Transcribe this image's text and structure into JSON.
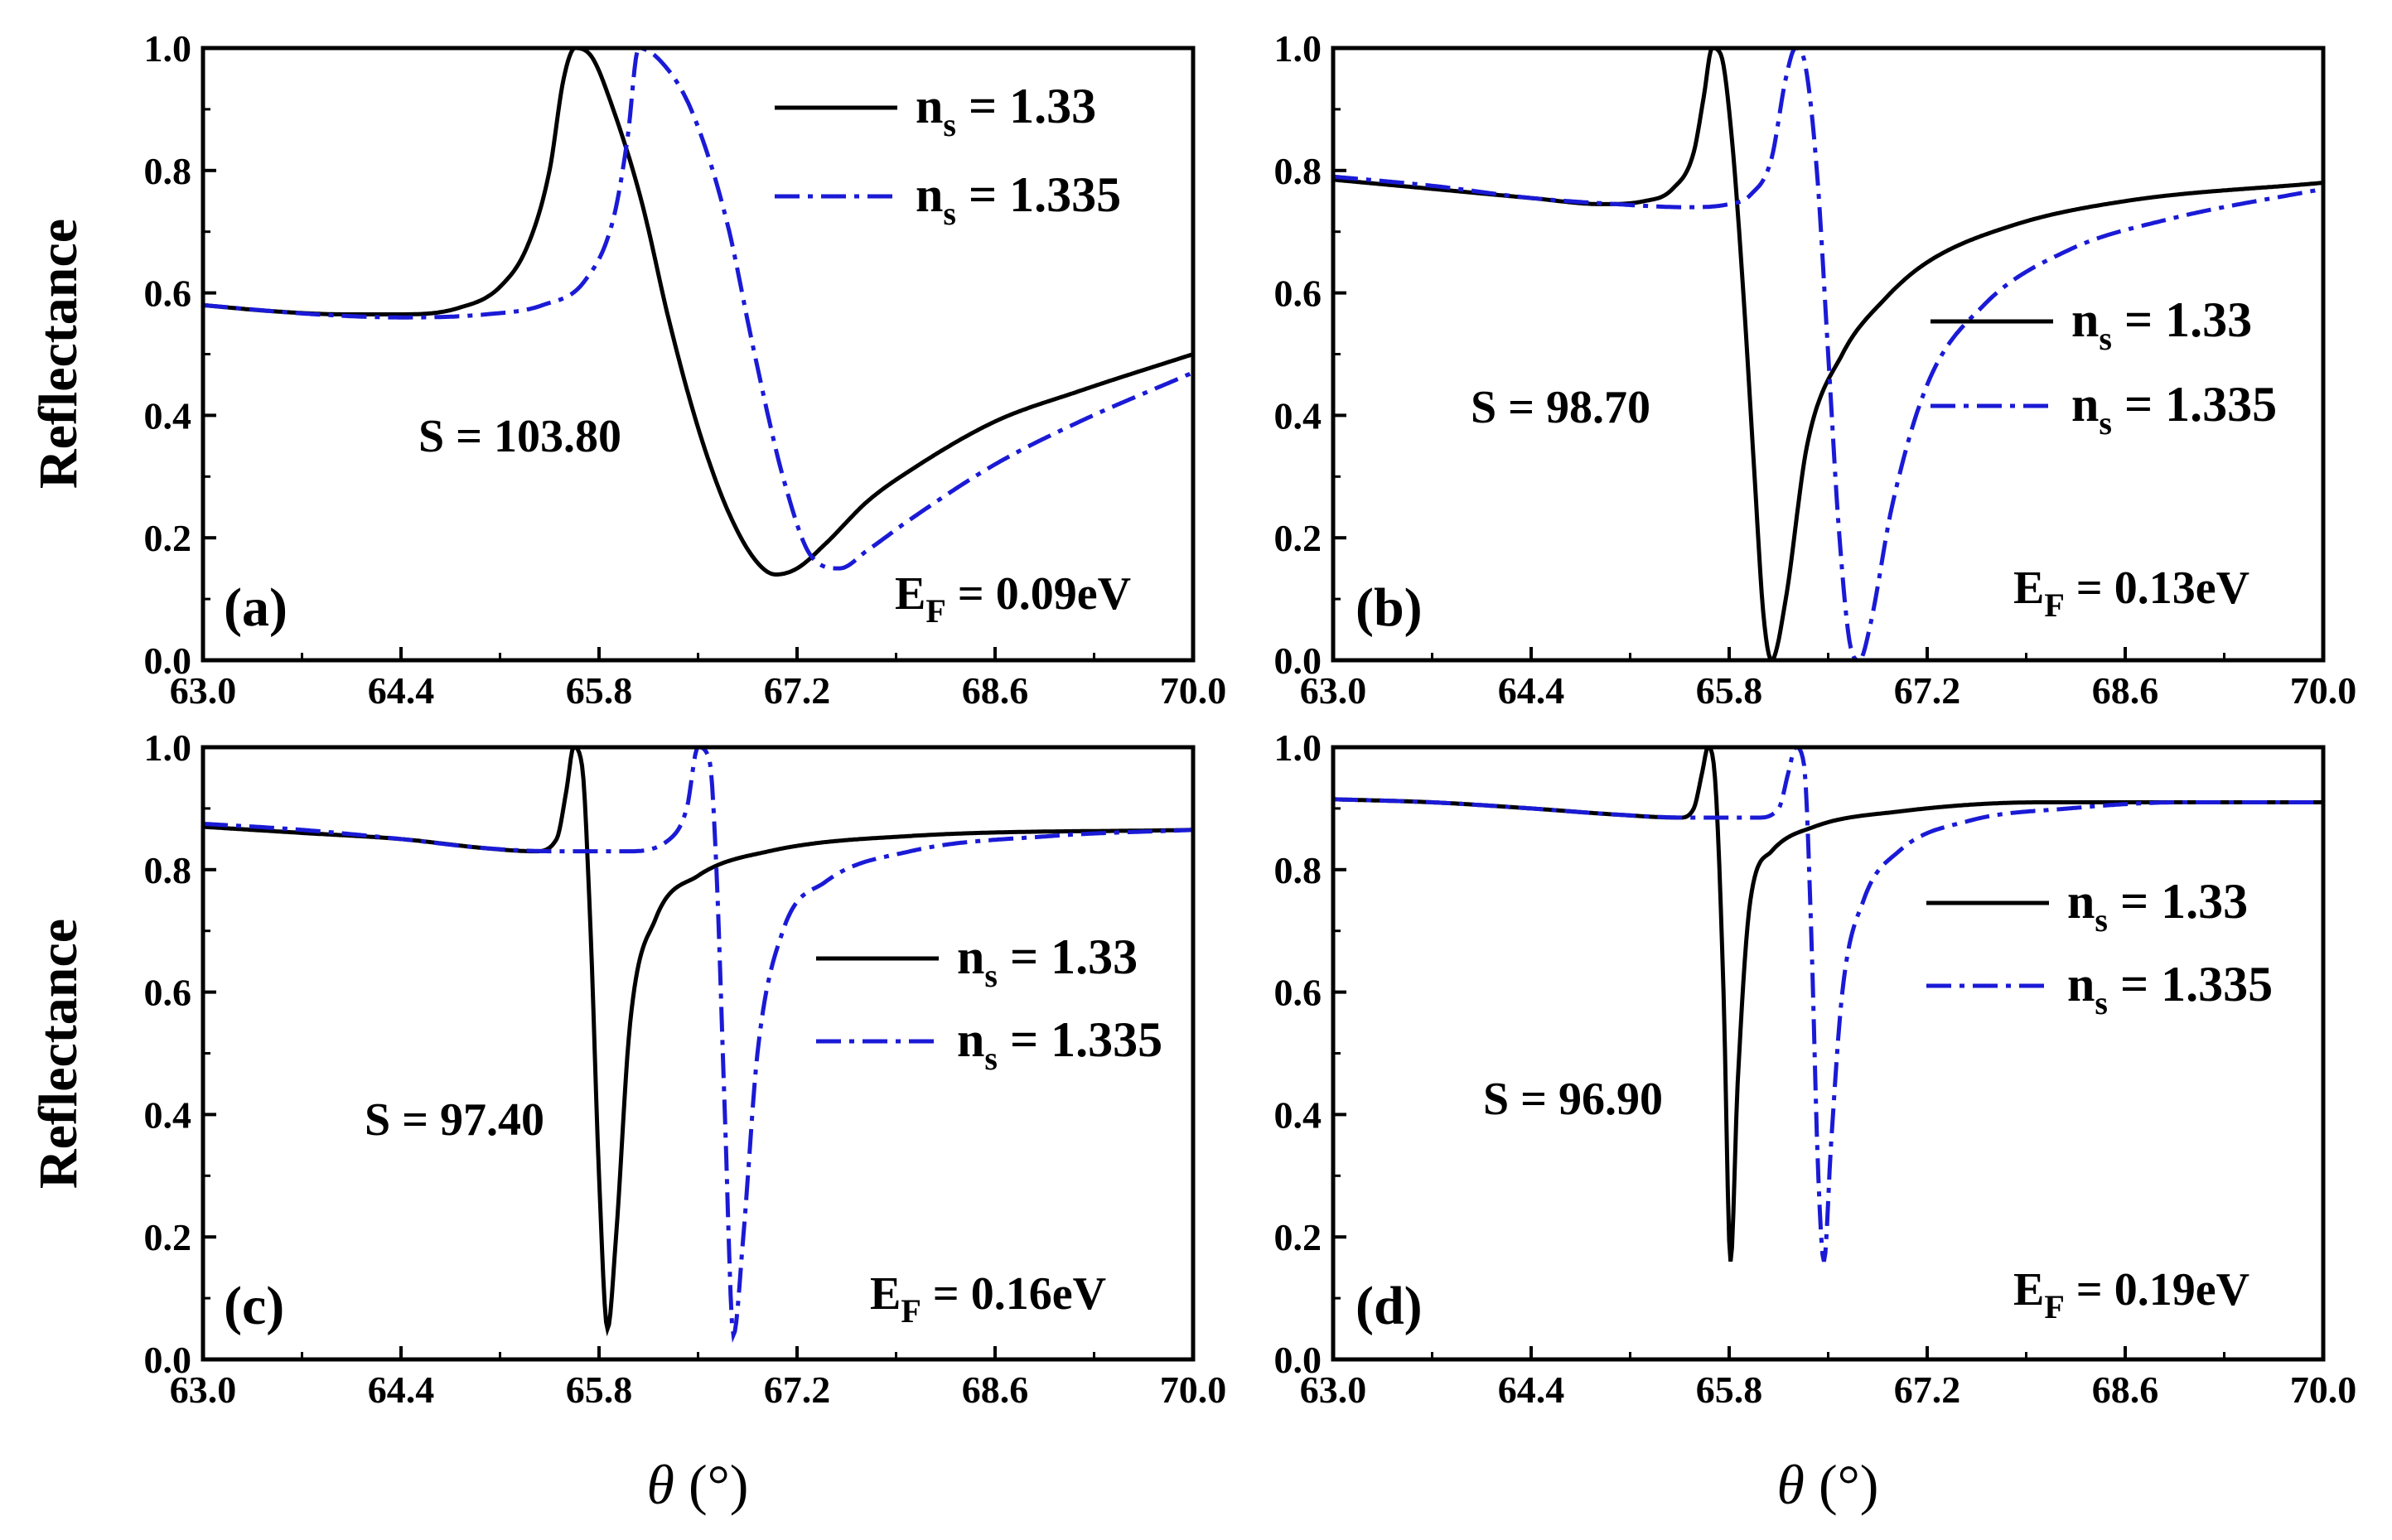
{
  "chart_data": {
    "type": "line",
    "panels": [
      {
        "label": "(a)",
        "S_text": "S = 103.80",
        "EF": {
          "main": "E",
          "sub": "F",
          "rest": "= 0.09eV"
        },
        "anchors": {
          "black": [
            [
              63.0,
              0.58
            ],
            [
              63.5,
              0.57
            ],
            [
              64.0,
              0.565
            ],
            [
              64.4,
              0.565
            ],
            [
              64.8,
              0.575
            ],
            [
              65.1,
              0.61
            ],
            [
              65.3,
              0.68
            ],
            [
              65.45,
              0.8
            ],
            [
              65.55,
              0.95
            ],
            [
              65.63,
              1.0
            ],
            [
              65.75,
              0.985
            ],
            [
              65.9,
              0.9
            ],
            [
              66.1,
              0.75
            ],
            [
              66.3,
              0.55
            ],
            [
              66.5,
              0.38
            ],
            [
              66.7,
              0.25
            ],
            [
              66.9,
              0.165
            ],
            [
              67.05,
              0.14
            ],
            [
              67.2,
              0.15
            ],
            [
              67.4,
              0.19
            ],
            [
              67.7,
              0.26
            ],
            [
              68.0,
              0.31
            ],
            [
              68.6,
              0.39
            ],
            [
              69.2,
              0.44
            ],
            [
              70.0,
              0.5
            ]
          ],
          "blue": [
            [
              63.0,
              0.58
            ],
            [
              63.8,
              0.565
            ],
            [
              64.4,
              0.56
            ],
            [
              65.0,
              0.565
            ],
            [
              65.4,
              0.58
            ],
            [
              65.7,
              0.62
            ],
            [
              65.9,
              0.72
            ],
            [
              66.0,
              0.85
            ],
            [
              66.08,
              1.0
            ],
            [
              66.25,
              0.975
            ],
            [
              66.45,
              0.9
            ],
            [
              66.7,
              0.72
            ],
            [
              66.9,
              0.5
            ],
            [
              67.1,
              0.3
            ],
            [
              67.3,
              0.17
            ],
            [
              67.5,
              0.15
            ],
            [
              67.7,
              0.18
            ],
            [
              68.0,
              0.23
            ],
            [
              68.6,
              0.32
            ],
            [
              69.2,
              0.39
            ],
            [
              70.0,
              0.47
            ]
          ]
        }
      },
      {
        "label": "(b)",
        "S_text": "S = 98.70",
        "EF": {
          "main": "E",
          "sub": "F",
          "rest": "= 0.13eV"
        },
        "anchors": {
          "black": [
            [
              63.0,
              0.785
            ],
            [
              63.7,
              0.77
            ],
            [
              64.4,
              0.755
            ],
            [
              64.9,
              0.745
            ],
            [
              65.2,
              0.75
            ],
            [
              65.4,
              0.77
            ],
            [
              65.55,
              0.83
            ],
            [
              65.62,
              0.92
            ],
            [
              65.68,
              1.0
            ],
            [
              65.74,
              0.99
            ],
            [
              65.82,
              0.85
            ],
            [
              65.9,
              0.6
            ],
            [
              65.98,
              0.3
            ],
            [
              66.04,
              0.08
            ],
            [
              66.1,
              0.0
            ],
            [
              66.2,
              0.1
            ],
            [
              66.35,
              0.35
            ],
            [
              66.6,
              0.5
            ],
            [
              66.9,
              0.59
            ],
            [
              67.2,
              0.65
            ],
            [
              67.8,
              0.71
            ],
            [
              68.6,
              0.75
            ],
            [
              70.0,
              0.78
            ]
          ],
          "blue": [
            [
              63.0,
              0.79
            ],
            [
              63.7,
              0.775
            ],
            [
              64.4,
              0.755
            ],
            [
              65.0,
              0.745
            ],
            [
              65.5,
              0.74
            ],
            [
              65.8,
              0.745
            ],
            [
              65.95,
              0.76
            ],
            [
              66.1,
              0.82
            ],
            [
              66.2,
              0.95
            ],
            [
              66.27,
              1.0
            ],
            [
              66.34,
              0.97
            ],
            [
              66.42,
              0.8
            ],
            [
              66.5,
              0.5
            ],
            [
              66.58,
              0.2
            ],
            [
              66.66,
              0.02
            ],
            [
              66.72,
              0.0
            ],
            [
              66.8,
              0.06
            ],
            [
              66.95,
              0.25
            ],
            [
              67.2,
              0.45
            ],
            [
              67.6,
              0.58
            ],
            [
              68.2,
              0.67
            ],
            [
              68.9,
              0.72
            ],
            [
              70.0,
              0.77
            ]
          ]
        }
      },
      {
        "label": "(c)",
        "S_text": "S = 97.40",
        "EF": {
          "main": "E",
          "sub": "F",
          "rest": "= 0.16eV"
        },
        "anchors": {
          "black": [
            [
              63.0,
              0.87
            ],
            [
              63.7,
              0.86
            ],
            [
              64.4,
              0.85
            ],
            [
              65.0,
              0.835
            ],
            [
              65.35,
              0.83
            ],
            [
              65.5,
              0.85
            ],
            [
              65.57,
              0.93
            ],
            [
              65.62,
              1.0
            ],
            [
              65.68,
              0.97
            ],
            [
              65.74,
              0.7
            ],
            [
              65.8,
              0.3
            ],
            [
              65.86,
              0.05
            ],
            [
              65.92,
              0.2
            ],
            [
              66.02,
              0.55
            ],
            [
              66.2,
              0.72
            ],
            [
              66.5,
              0.79
            ],
            [
              67.0,
              0.83
            ],
            [
              68.0,
              0.855
            ],
            [
              70.0,
              0.865
            ]
          ],
          "blue": [
            [
              63.0,
              0.875
            ],
            [
              63.7,
              0.865
            ],
            [
              64.4,
              0.85
            ],
            [
              65.0,
              0.835
            ],
            [
              65.5,
              0.83
            ],
            [
              66.0,
              0.83
            ],
            [
              66.3,
              0.85
            ],
            [
              66.42,
              0.9
            ],
            [
              66.5,
              1.0
            ],
            [
              66.58,
              0.98
            ],
            [
              66.63,
              0.8
            ],
            [
              66.69,
              0.4
            ],
            [
              66.75,
              0.04
            ],
            [
              66.82,
              0.2
            ],
            [
              66.92,
              0.5
            ],
            [
              67.1,
              0.7
            ],
            [
              67.4,
              0.78
            ],
            [
              68.0,
              0.83
            ],
            [
              69.0,
              0.855
            ],
            [
              70.0,
              0.865
            ]
          ]
        }
      },
      {
        "label": "(d)",
        "S_text": "S = 96.90",
        "EF": {
          "main": "E",
          "sub": "F",
          "rest": "= 0.19eV"
        },
        "anchors": {
          "black": [
            [
              63.0,
              0.915
            ],
            [
              63.7,
              0.91
            ],
            [
              64.4,
              0.9
            ],
            [
              65.0,
              0.89
            ],
            [
              65.45,
              0.885
            ],
            [
              65.55,
              0.9
            ],
            [
              65.61,
              0.96
            ],
            [
              65.65,
              1.0
            ],
            [
              65.7,
              0.95
            ],
            [
              65.76,
              0.6
            ],
            [
              65.81,
              0.16
            ],
            [
              65.86,
              0.45
            ],
            [
              65.95,
              0.75
            ],
            [
              66.1,
              0.83
            ],
            [
              66.4,
              0.87
            ],
            [
              67.0,
              0.895
            ],
            [
              68.0,
              0.91
            ],
            [
              70.0,
              0.91
            ]
          ],
          "blue": [
            [
              63.0,
              0.915
            ],
            [
              63.7,
              0.91
            ],
            [
              64.4,
              0.9
            ],
            [
              65.0,
              0.89
            ],
            [
              65.5,
              0.885
            ],
            [
              66.0,
              0.885
            ],
            [
              66.15,
              0.9
            ],
            [
              66.22,
              0.96
            ],
            [
              66.27,
              1.0
            ],
            [
              66.33,
              0.97
            ],
            [
              66.38,
              0.7
            ],
            [
              66.43,
              0.3
            ],
            [
              66.47,
              0.16
            ],
            [
              66.52,
              0.35
            ],
            [
              66.6,
              0.6
            ],
            [
              66.75,
              0.75
            ],
            [
              67.0,
              0.83
            ],
            [
              67.5,
              0.88
            ],
            [
              68.2,
              0.9
            ],
            [
              69.0,
              0.91
            ],
            [
              70.0,
              0.91
            ]
          ]
        }
      }
    ],
    "series": [
      {
        "key": "black",
        "name": "n",
        "sub": "s",
        "rest": "= 1.33",
        "color": "#000000",
        "style": "solid"
      },
      {
        "key": "blue",
        "name": "n",
        "sub": "s",
        "rest": "= 1.335",
        "color": "#1a1ad6",
        "style": "dash-dot"
      }
    ],
    "xlim": [
      63.0,
      70.0
    ],
    "ylim": [
      0.0,
      1.0
    ],
    "xticks": [
      "63.0",
      "64.4",
      "65.8",
      "67.2",
      "68.6",
      "70.0"
    ],
    "yticks": [
      "0.0",
      "0.2",
      "0.4",
      "0.6",
      "0.8",
      "1.0"
    ],
    "ylabel": "Reflectance",
    "xlabel": {
      "symbol": "θ",
      "unit": "(°)"
    }
  }
}
